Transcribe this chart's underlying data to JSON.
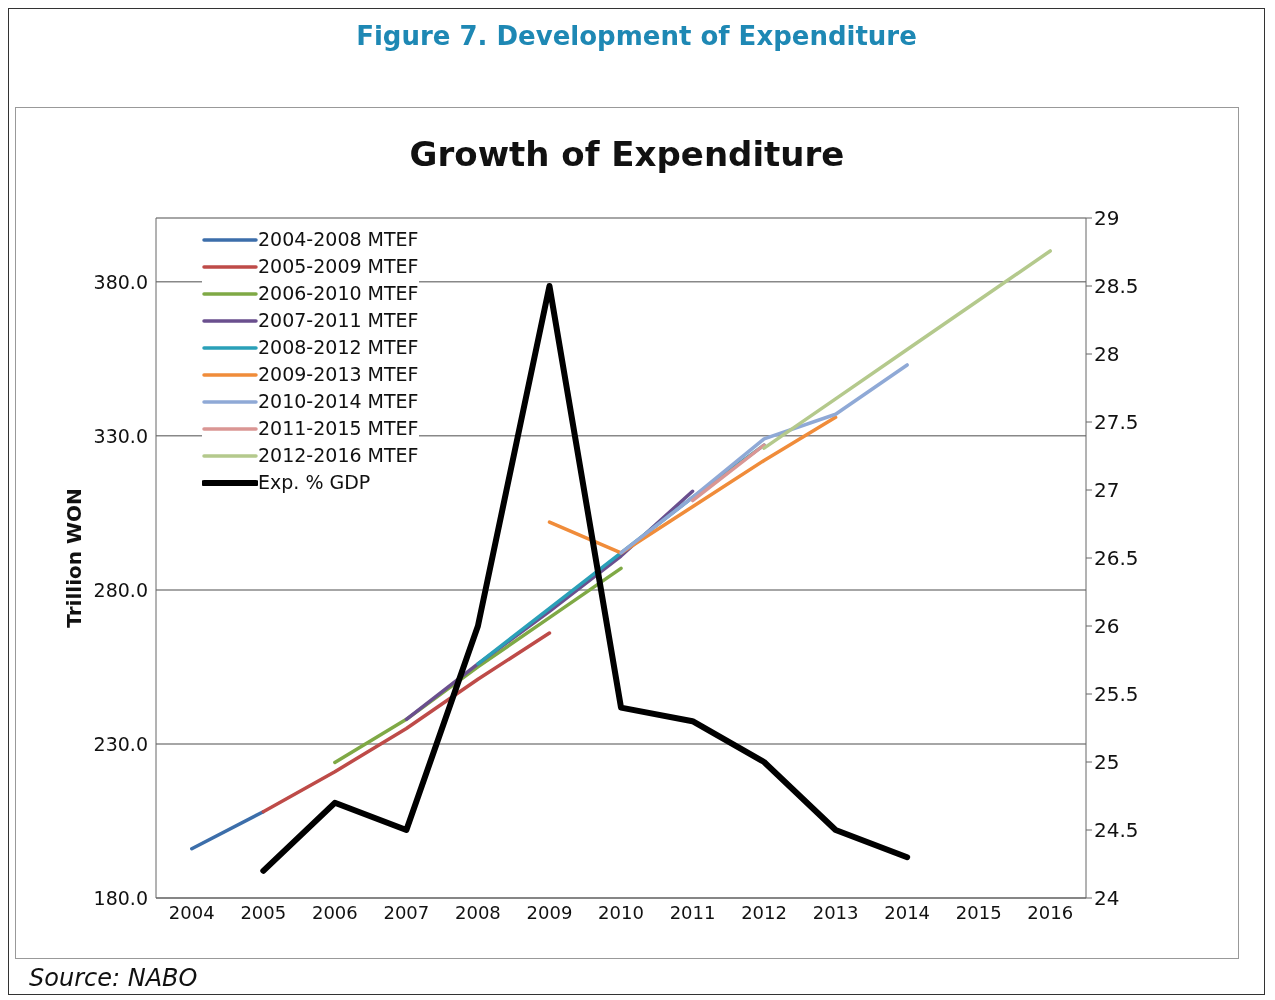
{
  "chart_data": {
    "type": "line",
    "title": "Figure 7. Development of Expenditure",
    "subtitle": "Growth of Expenditure",
    "ylabel": "Trillion WON",
    "annotations": [
      "Source: NABO"
    ],
    "categories": [
      "2004",
      "2005",
      "2006",
      "2007",
      "2008",
      "2009",
      "2010",
      "2011",
      "2012",
      "2013",
      "2014",
      "2015",
      "2016"
    ],
    "ylim": [
      180,
      400.7
    ],
    "yticks": [
      {
        "value": 180,
        "label": "180.0"
      },
      {
        "value": 230,
        "label": "230.0"
      },
      {
        "value": 280,
        "label": "280.0"
      },
      {
        "value": 330,
        "label": "330.0"
      },
      {
        "value": 380,
        "label": "380.0"
      }
    ],
    "y2lim": [
      24,
      29
    ],
    "y2ticks": [
      24,
      24.5,
      25,
      25.5,
      26,
      26.5,
      27,
      27.5,
      28,
      28.5,
      29
    ],
    "grid": "y",
    "legend": "top left",
    "marker": "none",
    "line_style": "solid",
    "series": [
      {
        "name": "2004-2008 MTEF",
        "color": "#3c6eaa",
        "values": [
          196,
          208,
          null,
          null,
          null,
          null,
          null,
          null,
          null,
          null,
          null,
          null,
          null
        ]
      },
      {
        "name": "2005-2009 MTEF",
        "color": "#be4b48",
        "values": [
          null,
          208,
          221,
          235,
          251,
          266,
          null,
          null,
          null,
          null,
          null,
          null,
          null
        ]
      },
      {
        "name": "2006-2010 MTEF",
        "color": "#7fa945",
        "values": [
          null,
          null,
          224,
          238,
          255,
          271,
          287,
          null,
          null,
          null,
          null,
          null,
          null
        ]
      },
      {
        "name": "2007-2011 MTEF",
        "color": "#6a4f8e",
        "values": [
          null,
          null,
          null,
          238,
          256,
          273,
          291,
          312,
          null,
          null,
          null,
          null,
          null
        ]
      },
      {
        "name": "2008-2012 MTEF",
        "color": "#2aa0b8",
        "values": [
          null,
          null,
          null,
          null,
          256,
          274,
          292,
          310,
          327,
          null,
          null,
          null,
          null
        ]
      },
      {
        "name": "2009-2013 MTEF",
        "color": "#f08c3a",
        "values": [
          null,
          null,
          null,
          null,
          null,
          302,
          292,
          307,
          322,
          336,
          null,
          null,
          null
        ]
      },
      {
        "name": "2010-2014 MTEF",
        "color": "#8fa9d6",
        "values": [
          null,
          null,
          null,
          null,
          null,
          null,
          292,
          310,
          329,
          337,
          353,
          null,
          null
        ]
      },
      {
        "name": "2011-2015 MTEF",
        "color": "#da9694",
        "values": [
          null,
          null,
          null,
          null,
          null,
          null,
          null,
          309,
          327,
          null,
          null,
          null,
          null
        ]
      },
      {
        "name": "2012-2016 MTEF",
        "color": "#b4c98c",
        "values": [
          null,
          null,
          null,
          null,
          null,
          null,
          null,
          null,
          326,
          342,
          358,
          374,
          390
        ]
      },
      {
        "name": "Exp. % GDP",
        "color": "#000000",
        "axis": "y2",
        "values": [
          null,
          24.2,
          24.7,
          24.5,
          26.0,
          28.5,
          25.4,
          25.3,
          25.0,
          24.5,
          24.3,
          null,
          null
        ]
      }
    ]
  }
}
